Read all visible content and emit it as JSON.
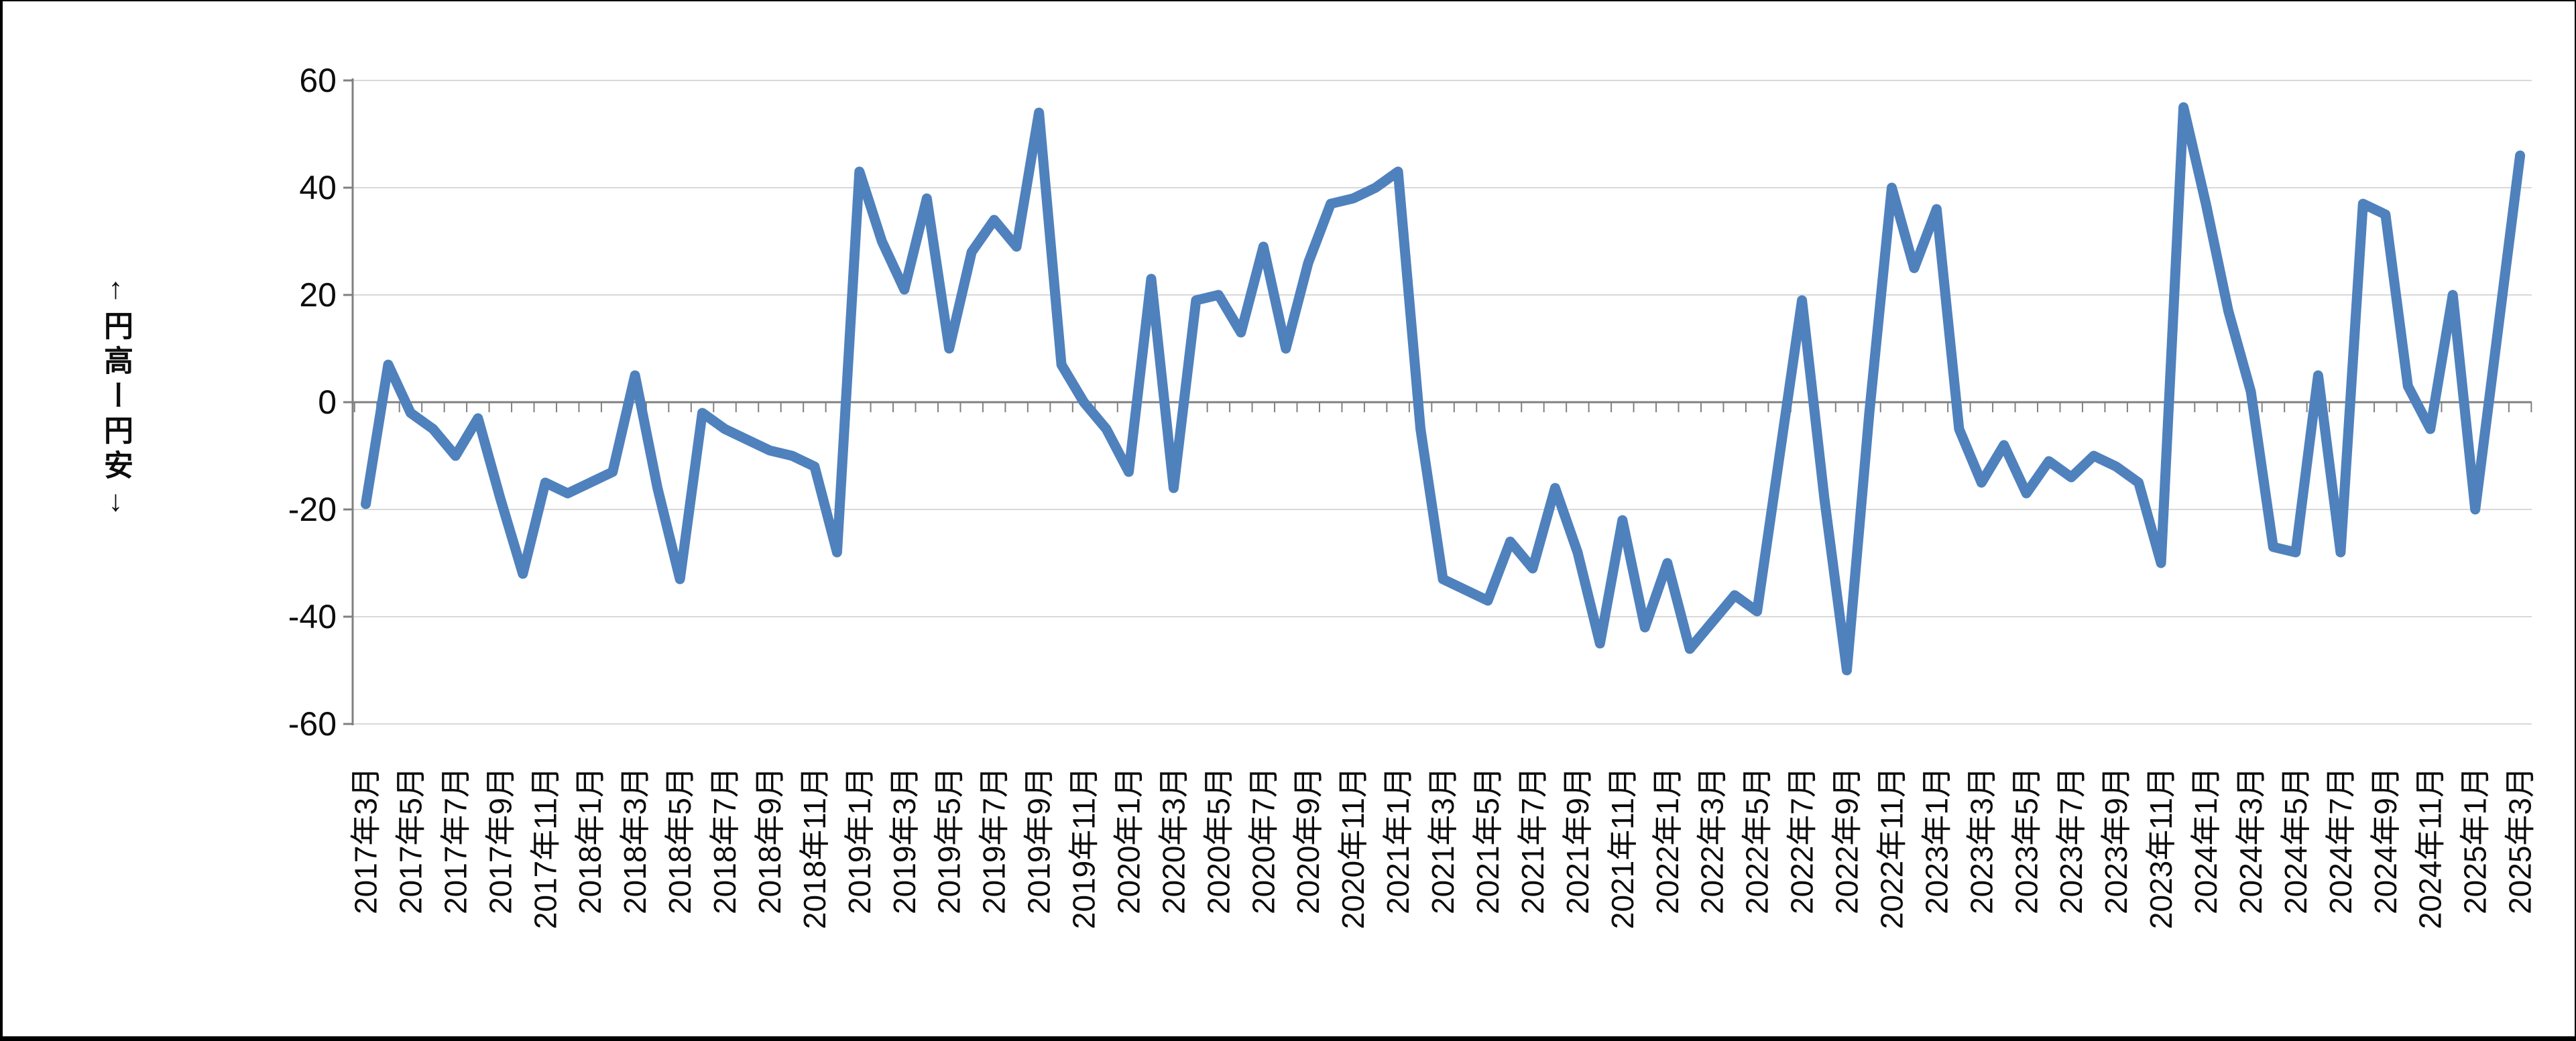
{
  "chart_data": {
    "type": "line",
    "title": "",
    "ylabel": "↑円高ー円安↓",
    "xlabel": "",
    "ylim": [
      -60,
      60
    ],
    "y_ticks": [
      60,
      40,
      20,
      0,
      -20,
      -40,
      -60
    ],
    "grid": "horizontal",
    "legend_position": "none",
    "line_color": "#4F81BD",
    "gridline_color": "#D9D9D9",
    "axis_color": "#808080",
    "text_color": "#0d0d0d",
    "x_tick_labels": [
      "2017年3月",
      "2017年5月",
      "2017年7月",
      "2017年9月",
      "2017年11月",
      "2018年1月",
      "2018年3月",
      "2018年5月",
      "2018年7月",
      "2018年9月",
      "2018年11月",
      "2019年1月",
      "2019年3月",
      "2019年5月",
      "2019年7月",
      "2019年9月",
      "2019年11月",
      "2020年1月",
      "2020年3月",
      "2020年5月",
      "2020年7月",
      "2020年9月",
      "2020年11月",
      "2021年1月",
      "2021年3月",
      "2021年5月",
      "2021年7月",
      "2021年9月",
      "2021年11月",
      "2022年1月",
      "2022年3月",
      "2022年5月",
      "2022年7月",
      "2022年9月",
      "2022年11月",
      "2023年1月",
      "2023年3月",
      "2023年5月",
      "2023年7月",
      "2023年9月",
      "2023年11月",
      "2024年1月",
      "2024年3月",
      "2024年5月",
      "2024年7月",
      "2024年9月",
      "2024年11月",
      "2025年1月",
      "2025年3月"
    ],
    "months": [
      "2017-03",
      "2017-04",
      "2017-05",
      "2017-06",
      "2017-07",
      "2017-08",
      "2017-09",
      "2017-10",
      "2017-11",
      "2017-12",
      "2018-01",
      "2018-02",
      "2018-03",
      "2018-04",
      "2018-05",
      "2018-06",
      "2018-07",
      "2018-08",
      "2018-09",
      "2018-10",
      "2018-11",
      "2018-12",
      "2019-01",
      "2019-02",
      "2019-03",
      "2019-04",
      "2019-05",
      "2019-06",
      "2019-07",
      "2019-08",
      "2019-09",
      "2019-10",
      "2019-11",
      "2019-12",
      "2020-01",
      "2020-02",
      "2020-03",
      "2020-04",
      "2020-05",
      "2020-06",
      "2020-07",
      "2020-08",
      "2020-09",
      "2020-10",
      "2020-11",
      "2020-12",
      "2021-01",
      "2021-02",
      "2021-03",
      "2021-04",
      "2021-05",
      "2021-06",
      "2021-07",
      "2021-08",
      "2021-09",
      "2021-10",
      "2021-11",
      "2021-12",
      "2022-01",
      "2022-02",
      "2022-03",
      "2022-04",
      "2022-05",
      "2022-06",
      "2022-07",
      "2022-08",
      "2022-09",
      "2022-10",
      "2022-11",
      "2022-12",
      "2023-01",
      "2023-02",
      "2023-03",
      "2023-04",
      "2023-05",
      "2023-06",
      "2023-07",
      "2023-08",
      "2023-09",
      "2023-10",
      "2023-11",
      "2023-12",
      "2024-01",
      "2024-02",
      "2024-03",
      "2024-04",
      "2024-05",
      "2024-06",
      "2024-07",
      "2024-08",
      "2024-09",
      "2024-10",
      "2024-11",
      "2024-12",
      "2025-01",
      "2025-02",
      "2025-03"
    ],
    "values": [
      -19,
      7,
      -2,
      -5,
      -10,
      -3,
      -18,
      -32,
      -15,
      -17,
      -15,
      -13,
      5,
      -16,
      -33,
      -2,
      -5,
      -7,
      -9,
      -10,
      -12,
      -28,
      43,
      30,
      21,
      38,
      10,
      28,
      34,
      29,
      54,
      7,
      0,
      -5,
      -13,
      23,
      -16,
      19,
      20,
      13,
      29,
      10,
      26,
      37,
      38,
      40,
      43,
      -5,
      -33,
      -35,
      -37,
      -26,
      -31,
      -16,
      -28,
      -45,
      -22,
      -42,
      -30,
      -46,
      -41,
      -36,
      -39,
      -10,
      19,
      -18,
      -50,
      -2,
      40,
      25,
      36,
      -5,
      -15,
      -8,
      -17,
      -11,
      -14,
      -10,
      -12,
      -15,
      -30,
      55,
      37,
      17,
      2,
      -27,
      -28,
      5,
      -28,
      37,
      35,
      3,
      -5,
      20,
      -20,
      13,
      46
    ]
  }
}
